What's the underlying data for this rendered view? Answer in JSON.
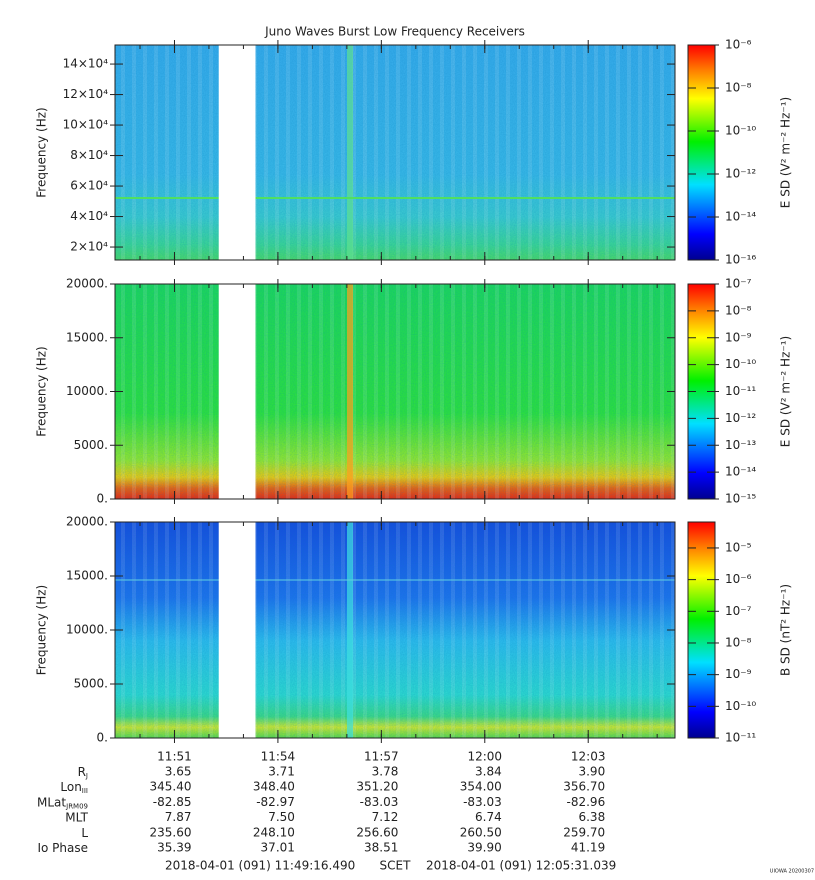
{
  "title": "Juno Waves Burst Low Frequency Receivers",
  "chart_data": [
    {
      "type": "spectrogram",
      "ylabel": "Frequency (Hz)",
      "zlabel": "E SD (V² m⁻² Hz⁻¹)",
      "xlim": [
        "2018-04-01T11:49:16.490",
        "2018-04-01T12:05:31.039"
      ],
      "xticks": [
        "11:51",
        "11:54",
        "11:57",
        "12:00",
        "12:03"
      ],
      "gaps": [
        [
          "11:52:17",
          "11:53:21"
        ]
      ],
      "ylim": [
        11500,
        152500
      ],
      "yticks": [
        {
          "value": 20000,
          "label": "2×10⁴"
        },
        {
          "value": 40000,
          "label": "4×10⁴"
        },
        {
          "value": 60000,
          "label": "6×10⁴"
        },
        {
          "value": 80000,
          "label": "8×10⁴"
        },
        {
          "value": 100000,
          "label": "10×10⁴"
        },
        {
          "value": 120000,
          "label": "12×10⁴"
        },
        {
          "value": 140000,
          "label": "14×10⁴"
        }
      ],
      "zscale": "log",
      "zlim": [
        1e-16,
        1e-06
      ],
      "zticks": [
        {
          "value": 1e-16,
          "label": "10⁻¹⁶"
        },
        {
          "value": 1e-14,
          "label": "10⁻¹⁴"
        },
        {
          "value": 1e-12,
          "label": "10⁻¹²"
        },
        {
          "value": 1e-10,
          "label": "10⁻¹⁰"
        },
        {
          "value": 1e-08,
          "label": "10⁻⁸"
        },
        {
          "value": 1e-06,
          "label": "10⁻⁶"
        }
      ]
    },
    {
      "type": "spectrogram",
      "ylabel": "Frequency (Hz)",
      "zlabel": "E SD (V² m⁻² Hz⁻¹)",
      "xlim": [
        "2018-04-01T11:49:16.490",
        "2018-04-01T12:05:31.039"
      ],
      "xticks": [
        "11:51",
        "11:54",
        "11:57",
        "12:00",
        "12:03"
      ],
      "gaps": [
        [
          "11:52:17",
          "11:53:21"
        ]
      ],
      "ylim": [
        0,
        20000
      ],
      "yticks": [
        {
          "value": 0,
          "label": "0."
        },
        {
          "value": 5000,
          "label": "5000."
        },
        {
          "value": 10000,
          "label": "10000."
        },
        {
          "value": 15000,
          "label": "15000."
        },
        {
          "value": 20000,
          "label": "20000."
        }
      ],
      "zscale": "log",
      "zlim": [
        1e-15,
        1e-07
      ],
      "zticks": [
        {
          "value": 1e-15,
          "label": "10⁻¹⁵"
        },
        {
          "value": 1e-14,
          "label": "10⁻¹⁴"
        },
        {
          "value": 1e-13,
          "label": "10⁻¹³"
        },
        {
          "value": 1e-12,
          "label": "10⁻¹²"
        },
        {
          "value": 1e-11,
          "label": "10⁻¹¹"
        },
        {
          "value": 1e-10,
          "label": "10⁻¹⁰"
        },
        {
          "value": 1e-09,
          "label": "10⁻⁹"
        },
        {
          "value": 1e-08,
          "label": "10⁻⁸"
        },
        {
          "value": 1e-07,
          "label": "10⁻⁷"
        }
      ]
    },
    {
      "type": "spectrogram",
      "ylabel": "Frequency (Hz)",
      "zlabel": "B SD (nT² Hz⁻¹)",
      "xlim": [
        "2018-04-01T11:49:16.490",
        "2018-04-01T12:05:31.039"
      ],
      "xticks": [
        "11:51",
        "11:54",
        "11:57",
        "12:00",
        "12:03"
      ],
      "gaps": [
        [
          "11:52:17",
          "11:53:21"
        ]
      ],
      "ylim": [
        0,
        20000
      ],
      "yticks": [
        {
          "value": 0,
          "label": "0."
        },
        {
          "value": 5000,
          "label": "5000."
        },
        {
          "value": 10000,
          "label": "10000."
        },
        {
          "value": 15000,
          "label": "15000."
        },
        {
          "value": 20000,
          "label": "20000."
        }
      ],
      "zscale": "log",
      "zlim": [
        1e-11,
        6.6e-05
      ],
      "zticks": [
        {
          "value": 1e-11,
          "label": "10⁻¹¹"
        },
        {
          "value": 1e-10,
          "label": "10⁻¹⁰"
        },
        {
          "value": 1e-09,
          "label": "10⁻⁹"
        },
        {
          "value": 1e-08,
          "label": "10⁻⁸"
        },
        {
          "value": 1e-07,
          "label": "10⁻⁷"
        },
        {
          "value": 1e-06,
          "label": "10⁻⁶"
        },
        {
          "value": 1e-05,
          "label": "10⁻⁵"
        }
      ]
    }
  ],
  "ephemeris": [
    {
      "label": "R",
      "sub": "J",
      "values": [
        "3.65",
        "3.71",
        "3.78",
        "3.84",
        "3.90"
      ]
    },
    {
      "label": "Lon",
      "sub": "III",
      "values": [
        "345.40",
        "348.40",
        "351.20",
        "354.00",
        "356.70"
      ]
    },
    {
      "label": "MLat",
      "sub": "JRM09",
      "values": [
        "-82.85",
        "-82.97",
        "-83.03",
        "-83.03",
        "-82.96"
      ]
    },
    {
      "label": "MLT",
      "values": [
        "7.87",
        "7.50",
        "7.12",
        "6.74",
        "6.38"
      ]
    },
    {
      "label": "L",
      "values": [
        "235.60",
        "248.10",
        "256.60",
        "260.50",
        "259.70"
      ]
    },
    {
      "label": "Io Phase",
      "values": [
        "35.39",
        "37.01",
        "38.51",
        "39.90",
        "41.19"
      ]
    }
  ],
  "footer": {
    "start": "2018-04-01 (091) 11:49:16.490",
    "mid": "SCET",
    "end": "2018-04-01 (091) 12:05:31.039",
    "stamp": "UIOWA 20200307"
  }
}
